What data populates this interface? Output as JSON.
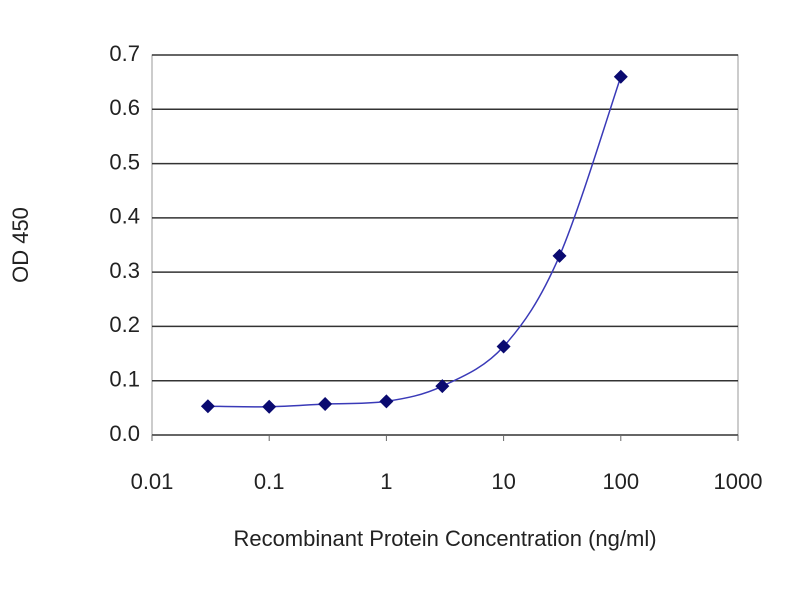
{
  "chart_data": {
    "type": "line",
    "x_label": "Recombinant Protein Concentration (ng/ml)",
    "y_label": "OD 450",
    "x": [
      0.03,
      0.1,
      0.3,
      1,
      3,
      10,
      30,
      100
    ],
    "values": [
      0.053,
      0.052,
      0.057,
      0.062,
      0.09,
      0.163,
      0.33,
      0.66
    ],
    "color": "#3a3ab8",
    "marker_color": "#0a0a70",
    "log_x": true,
    "xlim": [
      0.01,
      1000
    ],
    "xticks": [
      0.01,
      0.1,
      1,
      10,
      100,
      1000
    ],
    "ylim": [
      0,
      0.7
    ],
    "yticks": [
      {
        "value": 0,
        "label": "0.0"
      },
      0.1,
      0.2,
      0.3,
      0.4,
      0.5,
      0.6,
      0.7
    ],
    "grid": true
  }
}
